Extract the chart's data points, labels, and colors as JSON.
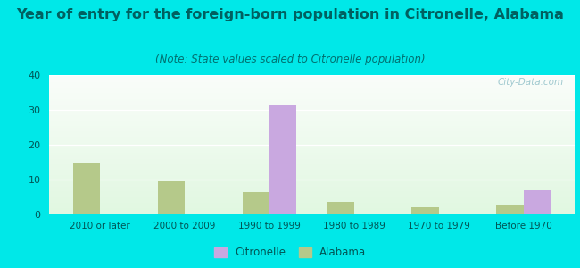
{
  "title": "Year of entry for the foreign-born population in Citronelle, Alabama",
  "subtitle": "(Note: State values scaled to Citronelle population)",
  "categories": [
    "2010 or later",
    "2000 to 2009",
    "1990 to 1999",
    "1980 to 1989",
    "1970 to 1979",
    "Before 1970"
  ],
  "citronelle_values": [
    0,
    0,
    31.5,
    0,
    0,
    7
  ],
  "alabama_values": [
    15,
    9.5,
    6.5,
    3.5,
    2,
    2.5
  ],
  "citronelle_color": "#c9a8e0",
  "alabama_color": "#b5c98a",
  "ylim": [
    0,
    40
  ],
  "yticks": [
    0,
    10,
    20,
    30,
    40
  ],
  "outer_bg": "#00e8e8",
  "title_fontsize": 11.5,
  "subtitle_fontsize": 8.5,
  "bar_width": 0.32,
  "title_color": "#006060",
  "subtitle_color": "#007070",
  "tick_color": "#005555",
  "watermark_color": "#90c0c8"
}
